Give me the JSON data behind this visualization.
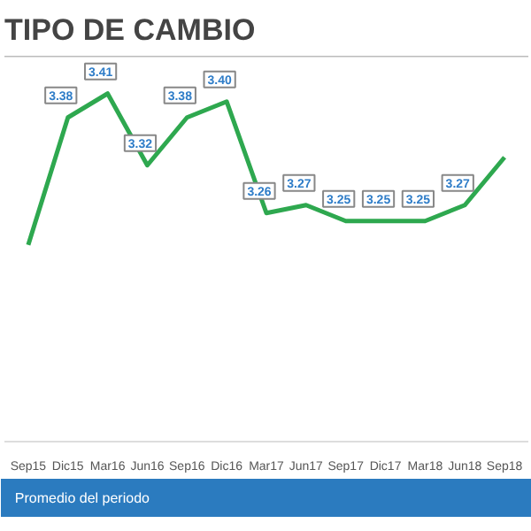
{
  "chart_data": {
    "type": "line",
    "title": "TIPO DE CAMBIO",
    "categories": [
      "Sep15",
      "Dic15",
      "Mar16",
      "Jun16",
      "Sep16",
      "Dic16",
      "Mar17",
      "Jun17",
      "Sep17",
      "Dic17",
      "Mar18",
      "Jun18",
      "Sep18"
    ],
    "series": [
      {
        "color": "#2ea84f",
        "values": [
          3.22,
          3.38,
          3.41,
          3.32,
          3.38,
          3.4,
          3.26,
          3.27,
          3.25,
          3.25,
          3.25,
          3.27,
          3.33
        ],
        "value_labels": [
          null,
          "3.38",
          "3.41",
          "3.32",
          "3.38",
          "3.40",
          "3.26",
          "3.27",
          "3.25",
          "3.25",
          "3.25",
          "3.27",
          null
        ]
      }
    ],
    "annotations": [
      "Promedio del periodo"
    ],
    "grid": false,
    "marker": "none",
    "line_style": "solid"
  }
}
